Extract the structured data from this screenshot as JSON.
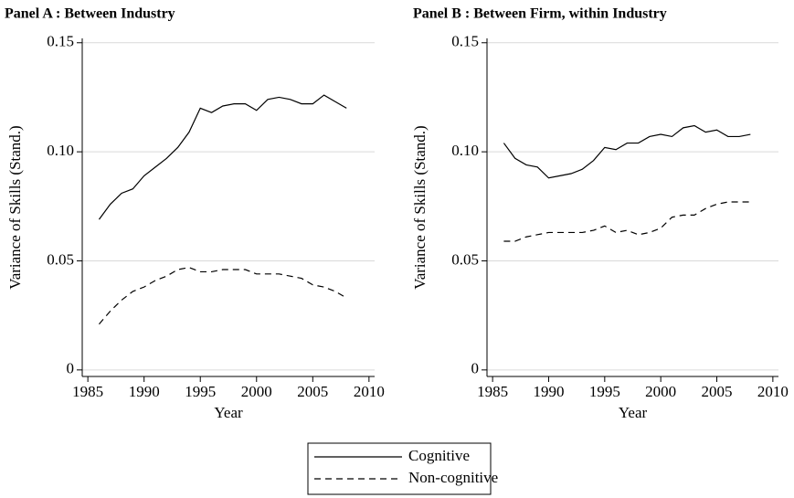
{
  "chart_data": [
    {
      "type": "line",
      "title": "Panel A : Between Industry",
      "xlabel": "Year",
      "ylabel": "Variance of Skills (Stand.)",
      "x": [
        1986,
        1987,
        1988,
        1989,
        1990,
        1991,
        1992,
        1993,
        1994,
        1995,
        1996,
        1997,
        1998,
        1999,
        2000,
        2001,
        2002,
        2003,
        2004,
        2005,
        2006,
        2007,
        2008
      ],
      "series": [
        {
          "name": "Cognitive",
          "color": "#000000",
          "linestyle": "solid",
          "values": [
            0.069,
            0.076,
            0.081,
            0.083,
            0.089,
            0.093,
            0.097,
            0.102,
            0.109,
            0.12,
            0.118,
            0.121,
            0.122,
            0.122,
            0.119,
            0.124,
            0.125,
            0.124,
            0.122,
            0.122,
            0.126,
            0.123,
            0.12
          ]
        },
        {
          "name": "Non-cognitive",
          "color": "#000000",
          "linestyle": "dashed",
          "values": [
            0.021,
            0.027,
            0.032,
            0.036,
            0.038,
            0.041,
            0.043,
            0.046,
            0.047,
            0.045,
            0.045,
            0.046,
            0.046,
            0.046,
            0.044,
            0.044,
            0.044,
            0.043,
            0.042,
            0.039,
            0.038,
            0.036,
            0.033
          ]
        }
      ],
      "xlim": [
        1984.5,
        2010.5
      ],
      "xticks": [
        1985,
        1990,
        1995,
        2000,
        2005,
        2010
      ],
      "ylim": [
        -0.003,
        0.152
      ],
      "yticks": [
        0,
        0.05,
        {
          "value": 0.1,
          "label": "0.10"
        },
        0.15
      ],
      "grid": true
    },
    {
      "type": "line",
      "title": "Panel B : Between Firm, within Industry",
      "xlabel": "Year",
      "ylabel": "Variance of Skills (Stand.)",
      "x": [
        1986,
        1987,
        1988,
        1989,
        1990,
        1991,
        1992,
        1993,
        1994,
        1995,
        1996,
        1997,
        1998,
        1999,
        2000,
        2001,
        2002,
        2003,
        2004,
        2005,
        2006,
        2007,
        2008
      ],
      "series": [
        {
          "name": "Cognitive",
          "color": "#000000",
          "linestyle": "solid",
          "values": [
            0.104,
            0.097,
            0.094,
            0.093,
            0.088,
            0.089,
            0.09,
            0.092,
            0.096,
            0.102,
            0.101,
            0.104,
            0.104,
            0.107,
            0.108,
            0.107,
            0.111,
            0.112,
            0.109,
            0.11,
            0.107,
            0.107,
            0.108
          ]
        },
        {
          "name": "Non-cognitive",
          "color": "#000000",
          "linestyle": "dashed",
          "values": [
            0.059,
            0.059,
            0.061,
            0.062,
            0.063,
            0.063,
            0.063,
            0.063,
            0.064,
            0.066,
            0.063,
            0.064,
            0.062,
            0.063,
            0.065,
            0.07,
            0.071,
            0.071,
            0.074,
            0.076,
            0.077,
            0.077,
            0.077
          ]
        }
      ],
      "xlim": [
        1984.5,
        2010.5
      ],
      "xticks": [
        1985,
        1990,
        1995,
        2000,
        2005,
        2010
      ],
      "ylim": [
        -0.003,
        0.152
      ],
      "yticks": [
        0,
        0.05,
        {
          "value": 0.1,
          "label": "0.10"
        },
        0.15
      ],
      "grid": true
    }
  ]
}
